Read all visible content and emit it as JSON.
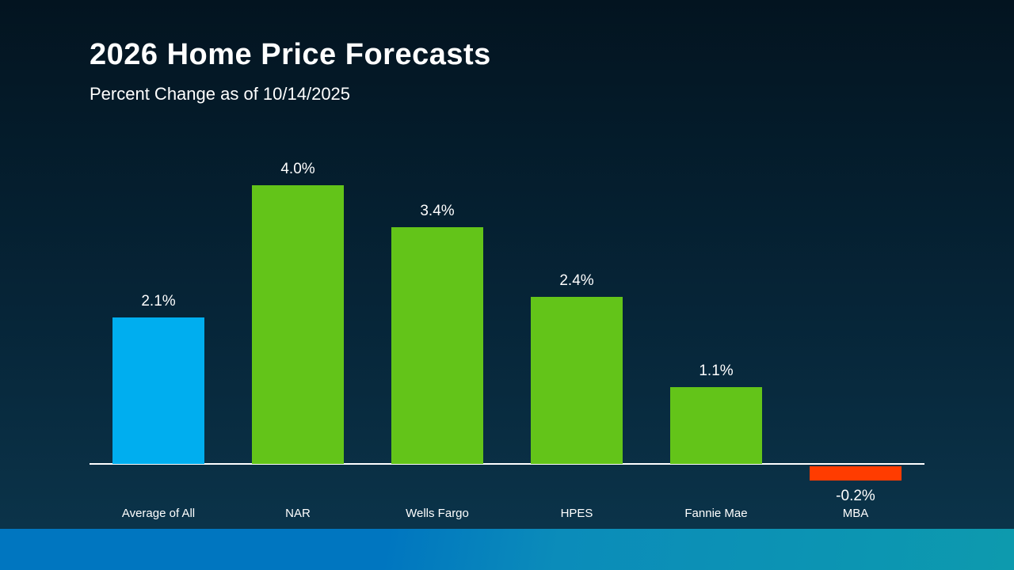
{
  "header": {
    "title": "2026 Home Price Forecasts",
    "subtitle": "Percent Change as of 10/14/2025"
  },
  "chart_data": {
    "type": "bar",
    "title": "2026 Home Price Forecasts",
    "subtitle": "Percent Change as of 10/14/2025",
    "categories": [
      "Average of All",
      "NAR",
      "Wells Fargo",
      "HPES",
      "Fannie Mae",
      "MBA"
    ],
    "values": [
      2.1,
      4.0,
      3.4,
      2.4,
      1.1,
      -0.2
    ],
    "value_labels": [
      "2.1%",
      "4.0%",
      "3.4%",
      "2.4%",
      "1.1%",
      "-0.2%"
    ],
    "bar_colors": [
      "#00aeef",
      "#63c419",
      "#63c419",
      "#63c419",
      "#63c419",
      "#ff3c00"
    ],
    "xlabel": "",
    "ylabel": "",
    "ylim": [
      -0.5,
      4.5
    ],
    "grid": false,
    "legend": false,
    "baseline_color": "#ffffff"
  },
  "colors": {
    "background_top": "#031420",
    "background_bottom": "#0b3349",
    "text": "#ffffff",
    "highlight_bar": "#00aeef",
    "positive_bar": "#63c419",
    "negative_bar": "#ff3c00",
    "footer_band_left": "#0076c0",
    "footer_band_right": "#0d9aae"
  }
}
